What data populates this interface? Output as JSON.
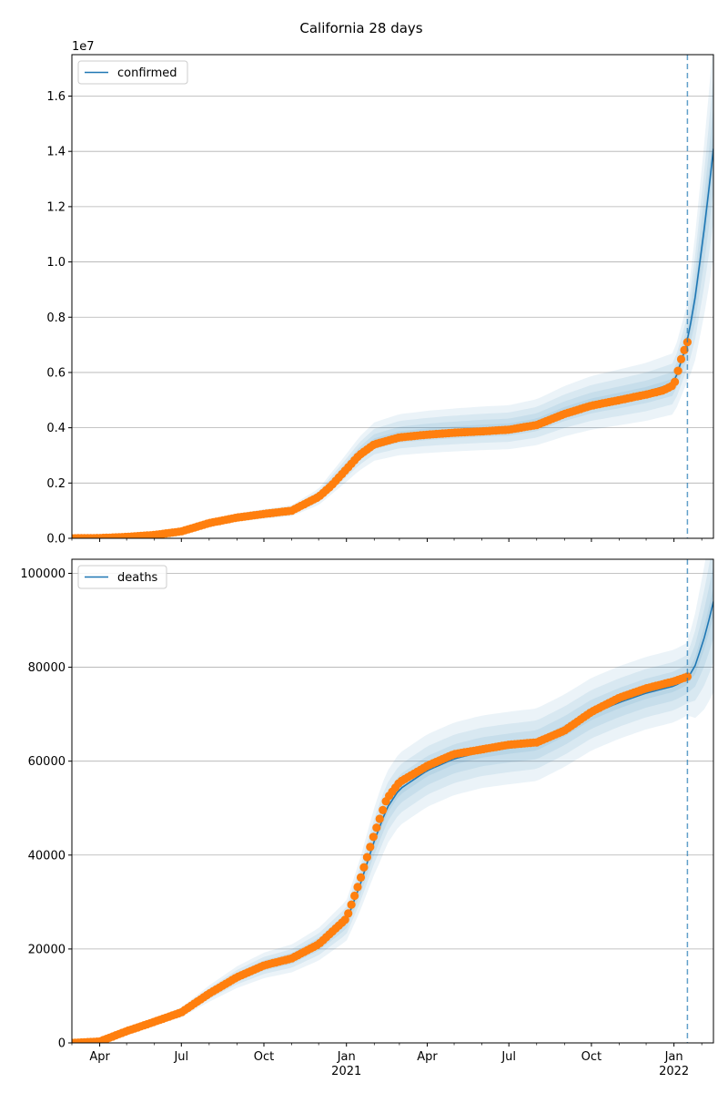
{
  "figure": {
    "title": "California 28 days"
  },
  "colors": {
    "model_line": "#1f77b4",
    "observed": "#ff7f0e",
    "band": "#1f77b4",
    "grid": "#b0b0b0",
    "vline": "#1f77b4"
  },
  "chart_data": [
    {
      "type": "line",
      "title": "",
      "xlabel": "",
      "ylabel": "",
      "y_offset_label": "1e7",
      "legend": {
        "labels": [
          "confirmed"
        ],
        "placement": "top-left"
      },
      "grid": "y",
      "x_range": [
        "2020-03-01",
        "2022-02-14"
      ],
      "ylim": [
        0,
        1.75
      ],
      "y_ticks": [
        0,
        0.2,
        0.4,
        0.6,
        0.8,
        1.0,
        1.2,
        1.4,
        1.6
      ],
      "y_tick_labels": [
        "0.0",
        "0.2",
        "0.4",
        "0.6",
        "0.8",
        "1.0",
        "1.2",
        "1.4",
        "1.6"
      ],
      "forecast_start": "2022-01-16",
      "series": [
        {
          "name": "confirmed",
          "style": "line",
          "x": [
            "2020-03-01",
            "2020-04-01",
            "2020-05-01",
            "2020-06-01",
            "2020-07-01",
            "2020-08-01",
            "2020-09-01",
            "2020-10-01",
            "2020-11-01",
            "2020-12-01",
            "2021-01-01",
            "2021-01-15",
            "2021-02-01",
            "2021-03-01",
            "2021-04-01",
            "2021-05-01",
            "2021-06-01",
            "2021-07-01",
            "2021-08-01",
            "2021-09-01",
            "2021-10-01",
            "2021-11-01",
            "2021-12-01",
            "2022-01-01",
            "2022-01-16",
            "2022-01-25",
            "2022-02-05",
            "2022-02-14"
          ],
          "values": [
            0.0,
            0.001,
            0.005,
            0.012,
            0.025,
            0.055,
            0.075,
            0.088,
            0.1,
            0.15,
            0.255,
            0.305,
            0.35,
            0.375,
            0.385,
            0.392,
            0.398,
            0.402,
            0.42,
            0.46,
            0.49,
            0.51,
            0.53,
            0.56,
            0.71,
            0.88,
            1.15,
            1.41
          ]
        },
        {
          "name": "",
          "style": "points",
          "x": [
            "2020-03-01",
            "2020-04-01",
            "2020-05-01",
            "2020-06-01",
            "2020-07-01",
            "2020-08-01",
            "2020-09-01",
            "2020-10-01",
            "2020-11-01",
            "2020-12-01",
            "2020-12-15",
            "2021-01-01",
            "2021-01-15",
            "2021-02-01",
            "2021-03-01",
            "2021-04-01",
            "2021-05-01",
            "2021-06-01",
            "2021-07-01",
            "2021-08-01",
            "2021-09-01",
            "2021-10-01",
            "2021-11-01",
            "2021-12-01",
            "2021-12-20",
            "2022-01-01",
            "2022-01-05",
            "2022-01-10",
            "2022-01-16"
          ],
          "values": [
            0.0,
            0.001,
            0.005,
            0.012,
            0.025,
            0.055,
            0.075,
            0.088,
            0.1,
            0.15,
            0.19,
            0.25,
            0.3,
            0.34,
            0.365,
            0.375,
            0.382,
            0.387,
            0.393,
            0.41,
            0.45,
            0.48,
            0.5,
            0.52,
            0.535,
            0.555,
            0.6,
            0.66,
            0.71
          ]
        }
      ]
    },
    {
      "type": "line",
      "title": "",
      "xlabel": "",
      "ylabel": "",
      "legend": {
        "labels": [
          "deaths"
        ],
        "placement": "top-left"
      },
      "grid": "y",
      "x_range": [
        "2020-03-01",
        "2022-02-14"
      ],
      "ylim": [
        0,
        103000
      ],
      "y_ticks": [
        0,
        20000,
        40000,
        60000,
        80000,
        100000
      ],
      "y_tick_labels": [
        "0",
        "20000",
        "40000",
        "60000",
        "80000",
        "100000"
      ],
      "x_tick_labels": [
        "Apr",
        "Jul",
        "Oct",
        "Jan\n2021",
        "Apr",
        "Jul",
        "Oct",
        "Jan\n2022"
      ],
      "forecast_start": "2022-01-16",
      "series": [
        {
          "name": "deaths",
          "style": "line",
          "x": [
            "2020-03-01",
            "2020-04-01",
            "2020-05-01",
            "2020-06-01",
            "2020-07-01",
            "2020-08-01",
            "2020-09-01",
            "2020-10-01",
            "2020-11-01",
            "2020-12-01",
            "2021-01-01",
            "2021-01-15",
            "2021-02-01",
            "2021-02-15",
            "2021-03-01",
            "2021-04-01",
            "2021-05-01",
            "2021-06-01",
            "2021-07-01",
            "2021-08-01",
            "2021-09-01",
            "2021-10-01",
            "2021-11-01",
            "2021-12-01",
            "2022-01-01",
            "2022-01-16",
            "2022-01-25",
            "2022-02-05",
            "2022-02-14"
          ],
          "values": [
            0,
            300,
            2500,
            4500,
            6500,
            10500,
            14000,
            16500,
            18000,
            21000,
            26000,
            33000,
            43000,
            50000,
            54000,
            58000,
            60500,
            62000,
            62800,
            63500,
            66500,
            70000,
            72500,
            74500,
            76000,
            77500,
            80500,
            87000,
            94000
          ]
        },
        {
          "name": "",
          "style": "points",
          "x": [
            "2020-03-01",
            "2020-04-01",
            "2020-05-01",
            "2020-06-01",
            "2020-07-01",
            "2020-08-01",
            "2020-09-01",
            "2020-10-01",
            "2020-11-01",
            "2020-12-01",
            "2021-01-01",
            "2021-01-15",
            "2021-02-01",
            "2021-02-15",
            "2021-03-01",
            "2021-04-01",
            "2021-05-01",
            "2021-06-01",
            "2021-07-01",
            "2021-08-01",
            "2021-09-01",
            "2021-10-01",
            "2021-11-01",
            "2021-12-01",
            "2022-01-01",
            "2022-01-16"
          ],
          "values": [
            0,
            300,
            2500,
            4500,
            6500,
            10500,
            14000,
            16500,
            18000,
            21000,
            26500,
            34000,
            44500,
            52000,
            55500,
            59000,
            61500,
            62500,
            63500,
            64000,
            66500,
            70500,
            73500,
            75500,
            77000,
            78000
          ]
        }
      ]
    }
  ]
}
